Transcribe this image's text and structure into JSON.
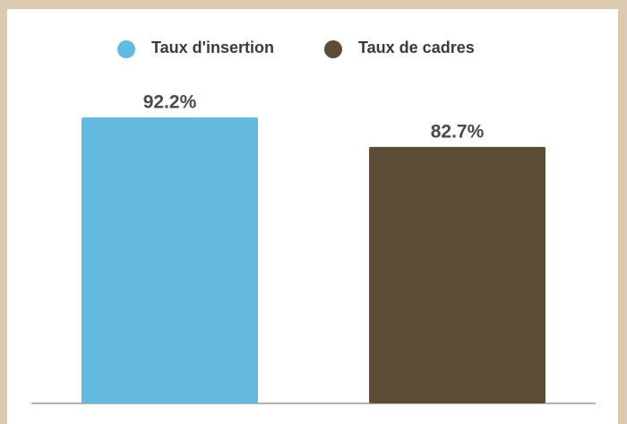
{
  "chart_data": {
    "type": "bar",
    "series": [
      {
        "name": "Taux d'insertion",
        "color": "#63b9e0",
        "values": [
          92.2
        ],
        "value_labels": [
          "92.2%"
        ]
      },
      {
        "name": "Taux de cadres",
        "color": "#5c4d36",
        "values": [
          82.7
        ],
        "value_labels": [
          "82.7%"
        ]
      }
    ],
    "ylim": [
      0,
      100
    ]
  }
}
